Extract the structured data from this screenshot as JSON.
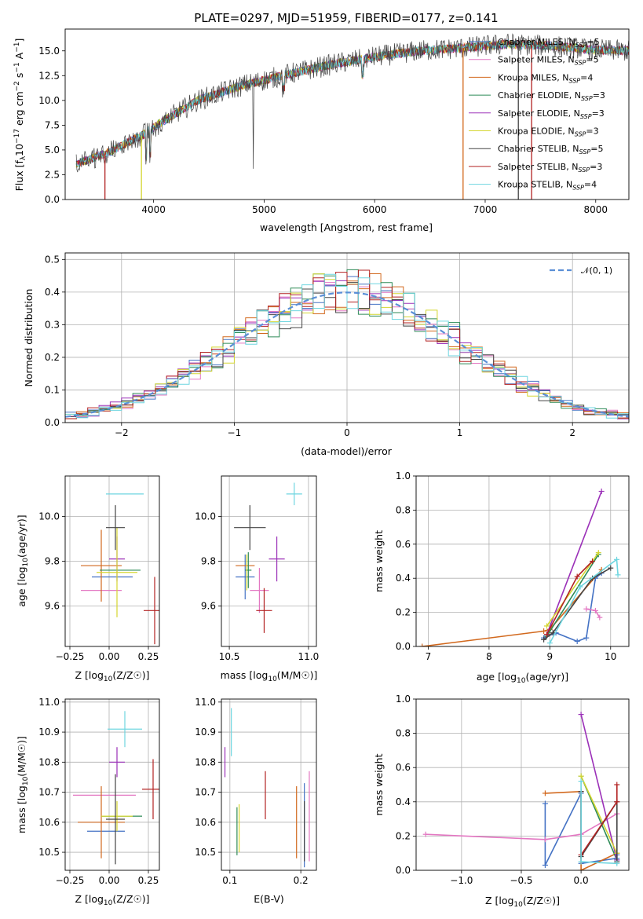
{
  "title": "PLATE=0297, MJD=51959, FIBERID=0177, z=0.141",
  "colors": [
    "#4472c4",
    "#e377c2",
    "#d2691e",
    "#2e8b57",
    "#9b30b8",
    "#d4d630",
    "#444444",
    "#b22222",
    "#6fd6e0"
  ],
  "chart_data": [
    {
      "id": "spectrum",
      "type": "line",
      "title": "PLATE=0297, MJD=51959, FIBERID=0177, z=0.141",
      "xlabel": "wavelength [Angstrom, rest frame]",
      "ylabel": "Flux [f_λ10^-17 erg cm^-2 s^-1 A^-1]",
      "xlim": [
        3200,
        8300
      ],
      "ylim": [
        0,
        17.2
      ],
      "xticks": [
        4000,
        5000,
        6000,
        7000,
        8000
      ],
      "yticks": [
        0.0,
        2.5,
        5.0,
        7.5,
        10.0,
        12.5,
        15.0
      ],
      "grid": false,
      "legend_position": "top-right",
      "continuum_x": [
        3300,
        3600,
        3900,
        4100,
        4400,
        4800,
        5200,
        5600,
        6000,
        6400,
        6800,
        7200,
        7600,
        8000,
        8300
      ],
      "continuum_y": [
        3.6,
        4.8,
        6.5,
        8.0,
        10.0,
        11.5,
        12.6,
        13.6,
        14.4,
        15.0,
        15.3,
        15.7,
        15.5,
        15.1,
        15.0
      ],
      "series": [
        {
          "name": "Chabrier MILES, N_SSP=5",
          "label_main": "Chabrier MILES, N",
          "label_sub": "SSP",
          "label_tail": "=5"
        },
        {
          "name": "Salpeter MILES, N_SSP=5",
          "label_main": "Salpeter MILES, N",
          "label_sub": "SSP",
          "label_tail": "=5"
        },
        {
          "name": "Kroupa MILES, N_SSP=4",
          "label_main": "Kroupa MILES, N",
          "label_sub": "SSP",
          "label_tail": "=4"
        },
        {
          "name": "Chabrier ELODIE, N_SSP=3",
          "label_main": "Chabrier ELODIE, N",
          "label_sub": "SSP",
          "label_tail": "=3"
        },
        {
          "name": "Salpeter ELODIE, N_SSP=3",
          "label_main": "Salpeter ELODIE, N",
          "label_sub": "SSP",
          "label_tail": "=3"
        },
        {
          "name": "Kroupa ELODIE, N_SSP=3",
          "label_main": "Kroupa ELODIE, N",
          "label_sub": "SSP",
          "label_tail": "=3"
        },
        {
          "name": "Chabrier STELIB, N_SSP=5",
          "label_main": "Chabrier STELIB, N",
          "label_sub": "SSP",
          "label_tail": "=5"
        },
        {
          "name": "Salpeter STELIB, N_SSP=3",
          "label_main": "Salpeter STELIB, N",
          "label_sub": "SSP",
          "label_tail": "=3"
        },
        {
          "name": "Kroupa STELIB, N_SSP=4",
          "label_main": "Kroupa STELIB, N",
          "label_sub": "SSP",
          "label_tail": "=4"
        }
      ]
    },
    {
      "id": "residuals",
      "type": "line",
      "xlabel": "(data-model)/error",
      "ylabel": "Normed distribution",
      "xlim": [
        -2.5,
        2.5
      ],
      "ylim": [
        0,
        0.52
      ],
      "xticks": [
        -2,
        -1,
        0,
        1,
        2
      ],
      "xtick_labels": [
        "−2",
        "−1",
        "0",
        "1",
        "2"
      ],
      "yticks": [
        0.0,
        0.1,
        0.2,
        0.3,
        0.4,
        0.5
      ],
      "grid": true,
      "legend_position": "top-right",
      "gaussian_label": "𝒩(0, 1)",
      "bin_edges_start": -2.5,
      "bin_width": 0.1,
      "n_bins": 50
    },
    {
      "id": "age-vs-Z",
      "type": "scatter",
      "xlabel": "Z [log10(Z/Z☉)]",
      "ylabel": "age [log10(age/yr)]",
      "xlim": [
        -0.28,
        0.32
      ],
      "ylim": [
        9.42,
        10.18
      ],
      "xticks": [
        -0.25,
        0.0,
        0.25
      ],
      "xtick_labels": [
        "−0.25",
        "0.00",
        "0.25"
      ],
      "yticks": [
        9.6,
        9.8,
        10.0
      ],
      "grid": true,
      "points": [
        {
          "x": 0.02,
          "y": 9.73,
          "xerr": 0.13,
          "yerr": 0.0
        },
        {
          "x": -0.05,
          "y": 9.67,
          "xerr": 0.13,
          "yerr": 0.0
        },
        {
          "x": -0.05,
          "y": 9.78,
          "xerr": 0.13,
          "yerr": 0.16
        },
        {
          "x": 0.07,
          "y": 9.76,
          "xerr": 0.13,
          "yerr": 0.0
        },
        {
          "x": 0.05,
          "y": 9.81,
          "xerr": 0.05,
          "yerr": 0.1
        },
        {
          "x": 0.05,
          "y": 9.75,
          "xerr": 0.13,
          "yerr": 0.2
        },
        {
          "x": 0.04,
          "y": 9.95,
          "xerr": 0.06,
          "yerr": 0.1
        },
        {
          "x": 0.29,
          "y": 9.58,
          "xerr": 0.07,
          "yerr": 0.15
        },
        {
          "x": 0.1,
          "y": 10.1,
          "xerr": 0.12,
          "yerr": 0.0
        }
      ]
    },
    {
      "id": "age-vs-mass",
      "type": "scatter",
      "xlabel": "mass [log10(M/M☉)]",
      "ylabel": "",
      "xlim": [
        10.45,
        11.05
      ],
      "ylim": [
        9.42,
        10.18
      ],
      "xticks": [
        10.5,
        11.0
      ],
      "xtick_labels": [
        "10.5",
        "11.0"
      ],
      "yticks": [
        9.6,
        9.8,
        10.0
      ],
      "grid": true,
      "points": [
        {
          "x": 10.6,
          "y": 9.73,
          "xerr": 0.06,
          "yerr": 0.1
        },
        {
          "x": 10.69,
          "y": 9.67,
          "xerr": 0.06,
          "yerr": 0.1
        },
        {
          "x": 10.6,
          "y": 9.78,
          "xerr": 0.06,
          "yerr": 0.0
        },
        {
          "x": 10.62,
          "y": 9.76,
          "xerr": 0.02,
          "yerr": 0.08
        },
        {
          "x": 10.8,
          "y": 9.81,
          "xerr": 0.05,
          "yerr": 0.1
        },
        {
          "x": 10.61,
          "y": 9.75,
          "xerr": 0.0,
          "yerr": 0.08
        },
        {
          "x": 10.63,
          "y": 9.95,
          "xerr": 0.1,
          "yerr": 0.1
        },
        {
          "x": 10.72,
          "y": 9.58,
          "xerr": 0.05,
          "yerr": 0.1
        },
        {
          "x": 10.91,
          "y": 10.1,
          "xerr": 0.05,
          "yerr": 0.05
        }
      ]
    },
    {
      "id": "massweight-vs-age",
      "type": "line",
      "xlabel": "age [log10(age/yr)]",
      "ylabel": "mass weight",
      "xlim": [
        6.8,
        10.3
      ],
      "ylim": [
        0,
        1.0
      ],
      "xticks": [
        7,
        8,
        9,
        10
      ],
      "yticks": [
        0.0,
        0.2,
        0.4,
        0.6,
        0.8,
        1.0
      ],
      "grid": true,
      "series": [
        {
          "x": [
            8.9,
            9.1,
            9.45,
            9.6,
            9.75,
            9.85
          ],
          "y": [
            0.05,
            0.08,
            0.03,
            0.05,
            0.4,
            0.43
          ]
        },
        {
          "x": [
            9.6,
            9.75,
            9.82
          ],
          "y": [
            0.22,
            0.21,
            0.17
          ]
        },
        {
          "x": [
            6.9,
            8.9,
            9.0,
            9.85
          ],
          "y": [
            0.0,
            0.09,
            0.1,
            0.45
          ]
        },
        {
          "x": [
            8.95,
            9.8
          ],
          "y": [
            0.06,
            0.54
          ]
        },
        {
          "x": [
            8.95,
            9.85
          ],
          "y": [
            0.07,
            0.91
          ]
        },
        {
          "x": [
            8.95,
            9.8
          ],
          "y": [
            0.12,
            0.55
          ]
        },
        {
          "x": [
            8.9,
            9.05,
            9.7,
            10.0
          ],
          "y": [
            0.04,
            0.08,
            0.4,
            0.46
          ]
        },
        {
          "x": [
            8.95,
            9.45,
            9.7
          ],
          "y": [
            0.07,
            0.41,
            0.5
          ]
        },
        {
          "x": [
            9.0,
            9.5,
            10.1,
            10.12
          ],
          "y": [
            0.02,
            0.35,
            0.51,
            0.42
          ]
        }
      ]
    },
    {
      "id": "mass-vs-Z",
      "type": "scatter",
      "xlabel": "Z [log10(Z/Z☉)]",
      "ylabel": "mass [log10(M/M☉)]",
      "xlim": [
        -0.28,
        0.32
      ],
      "ylim": [
        10.44,
        11.01
      ],
      "xticks": [
        -0.25,
        0.0,
        0.25
      ],
      "xtick_labels": [
        "−0.25",
        "0.00",
        "0.25"
      ],
      "yticks": [
        10.5,
        10.6,
        10.7,
        10.8,
        10.9,
        11.0
      ],
      "grid": true,
      "points": [
        {
          "x": -0.02,
          "y": 10.57,
          "xerr": 0.12,
          "yerr": 0.0
        },
        {
          "x": -0.03,
          "y": 10.69,
          "xerr": 0.2,
          "yerr": 0.0
        },
        {
          "x": -0.05,
          "y": 10.6,
          "xerr": 0.15,
          "yerr": 0.12
        },
        {
          "x": 0.08,
          "y": 10.62,
          "xerr": 0.13,
          "yerr": 0.0
        },
        {
          "x": 0.05,
          "y": 10.8,
          "xerr": 0.05,
          "yerr": 0.05
        },
        {
          "x": 0.05,
          "y": 10.62,
          "xerr": 0.1,
          "yerr": 0.05
        },
        {
          "x": 0.04,
          "y": 10.61,
          "xerr": 0.06,
          "yerr": 0.15
        },
        {
          "x": 0.28,
          "y": 10.71,
          "xerr": 0.07,
          "yerr": 0.1
        },
        {
          "x": 0.1,
          "y": 10.91,
          "xerr": 0.11,
          "yerr": 0.06
        }
      ]
    },
    {
      "id": "mass-vs-EBV",
      "type": "scatter",
      "xlabel": "E(B-V)",
      "ylabel": "",
      "xlim": [
        0.088,
        0.222
      ],
      "ylim": [
        10.44,
        11.01
      ],
      "xticks": [
        0.1,
        0.2
      ],
      "xtick_labels": [
        "0.1",
        "0.2"
      ],
      "yticks": [
        10.5,
        10.6,
        10.7,
        10.8,
        10.9,
        11.0
      ],
      "grid": true,
      "points": [
        {
          "x": 0.205,
          "y": 10.59,
          "xerr": 0.0,
          "yerr": 0.14
        },
        {
          "x": 0.212,
          "y": 10.62,
          "xerr": 0.0,
          "yerr": 0.15
        },
        {
          "x": 0.194,
          "y": 10.6,
          "xerr": 0.0,
          "yerr": 0.12
        },
        {
          "x": 0.11,
          "y": 10.57,
          "xerr": 0.0,
          "yerr": 0.08
        },
        {
          "x": 0.093,
          "y": 10.8,
          "xerr": 0.0,
          "yerr": 0.05
        },
        {
          "x": 0.113,
          "y": 10.58,
          "xerr": 0.0,
          "yerr": 0.08
        },
        {
          "x": 0.205,
          "y": 10.57,
          "xerr": 0.0,
          "yerr": 0.1
        },
        {
          "x": 0.15,
          "y": 10.69,
          "xerr": 0.0,
          "yerr": 0.08
        },
        {
          "x": 0.102,
          "y": 10.9,
          "xerr": 0.0,
          "yerr": 0.08
        }
      ]
    },
    {
      "id": "massweight-vs-Z",
      "type": "line",
      "xlabel": "Z [log10(Z/Z☉)]",
      "ylabel": "mass weight",
      "xlim": [
        -1.38,
        0.4
      ],
      "ylim": [
        0,
        1.0
      ],
      "xticks": [
        -1.0,
        -0.5,
        0.0
      ],
      "xtick_labels": [
        "−1.0",
        "−0.5",
        "0.0"
      ],
      "yticks": [
        0.0,
        0.2,
        0.4,
        0.6,
        0.8,
        1.0
      ],
      "grid": true,
      "series": [
        {
          "x": [
            -0.3,
            -0.3,
            0.0,
            0.0,
            0.3,
            0.3
          ],
          "y": [
            0.39,
            0.03,
            0.45,
            0.04,
            0.07,
            0.09
          ]
        },
        {
          "x": [
            -1.3,
            -0.3,
            0.0,
            0.3
          ],
          "y": [
            0.21,
            0.18,
            0.21,
            0.33
          ]
        },
        {
          "x": [
            -0.3,
            0.0,
            0.0,
            0.3
          ],
          "y": [
            0.45,
            0.46,
            0.0,
            0.1
          ]
        },
        {
          "x": [
            0.0,
            0.3
          ],
          "y": [
            0.55,
            0.06
          ]
        },
        {
          "x": [
            0.0,
            0.3
          ],
          "y": [
            0.91,
            0.06
          ]
        },
        {
          "x": [
            0.0,
            0.3
          ],
          "y": [
            0.55,
            0.1
          ]
        },
        {
          "x": [
            0.0,
            0.0,
            0.3,
            0.3
          ],
          "y": [
            0.46,
            0.08,
            0.4,
            0.05
          ]
        },
        {
          "x": [
            0.0,
            0.3,
            0.3
          ],
          "y": [
            0.09,
            0.4,
            0.5
          ]
        },
        {
          "x": [
            0.0,
            0.0,
            0.3
          ],
          "y": [
            0.52,
            0.05,
            0.04
          ]
        }
      ]
    }
  ]
}
